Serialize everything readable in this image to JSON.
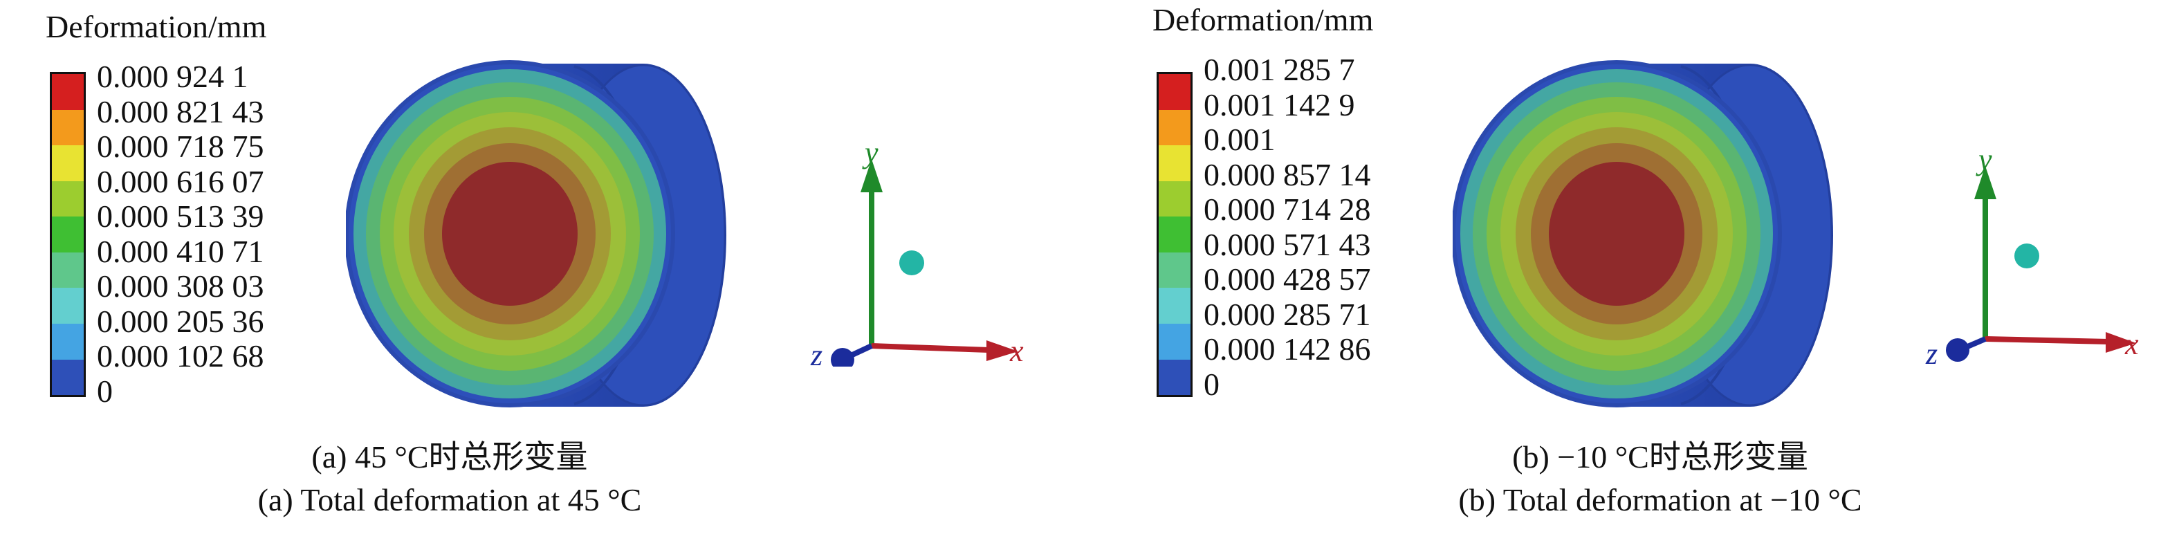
{
  "colors": {
    "scale": [
      "#d51f1f",
      "#f39a1c",
      "#e8e332",
      "#9ccd2f",
      "#3fbf33",
      "#5fc78b",
      "#63cfcf",
      "#44a4e3",
      "#2e50b8",
      "#1b2c8a"
    ],
    "model_side": "#2c4db8",
    "axis_y": "#1f8a2a",
    "axis_x": "#b5202a",
    "axis_z": "#1b2c9c",
    "sphere": "#23b5a5"
  },
  "panel_a": {
    "unit_title": "Deformation/mm",
    "legend_labels": [
      "0.000 924 1",
      "0.000 821 43",
      "0.000 718 75",
      "0.000 616 07",
      "0.000 513 39",
      "0.000 410 71",
      "0.000 308 03",
      "0.000 205 36",
      "0.000 102 68",
      "0"
    ],
    "axis_labels": {
      "x": "x",
      "y": "y",
      "z": "z"
    },
    "caption_cn": "(a) 45 °C时总形变量",
    "caption_en": "(a) Total deformation at 45 °C"
  },
  "panel_b": {
    "unit_title": "Deformation/mm",
    "legend_labels": [
      "0.001 285 7",
      "0.001 142 9",
      "0.001",
      "0.000 857 14",
      "0.000 714 28",
      "0.000 571 43",
      "0.000 428 57",
      "0.000 285 71",
      "0.000 142 86",
      "0"
    ],
    "axis_labels": {
      "x": "x",
      "y": "y",
      "z": "z"
    },
    "caption_cn": "(b) −10 °C时总形变量",
    "caption_en": "(b) Total deformation at −10 °C"
  }
}
